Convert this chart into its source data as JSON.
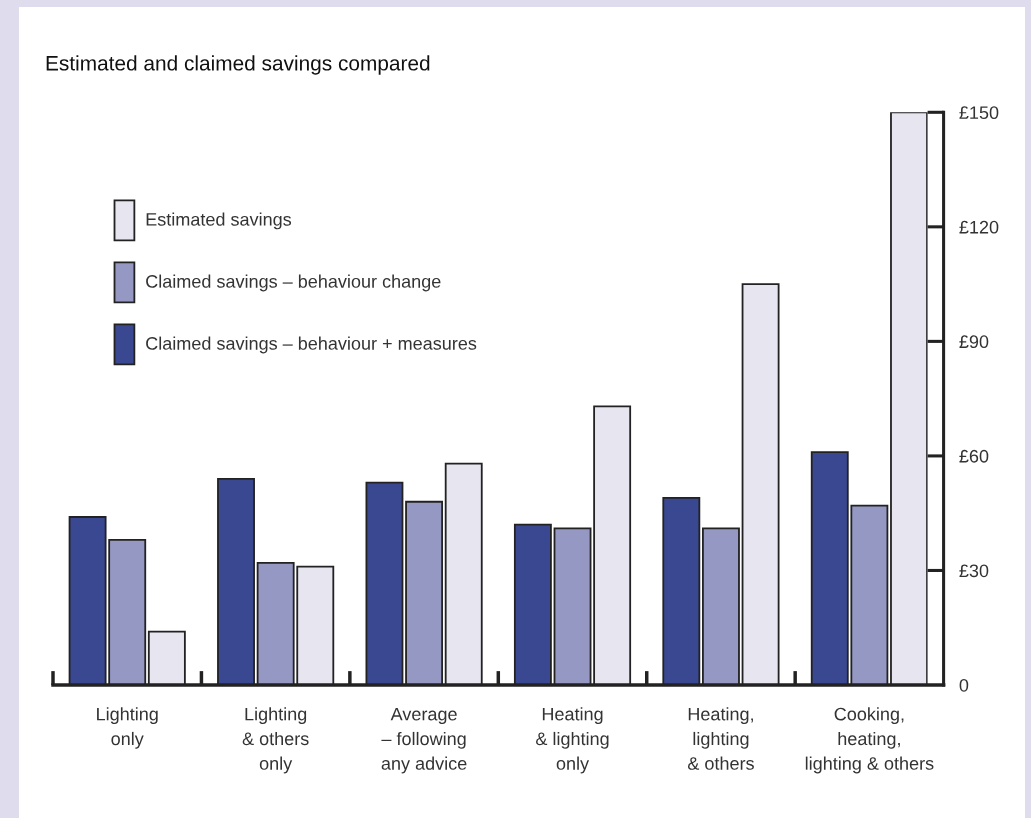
{
  "chart_data": {
    "type": "bar",
    "title": "Estimated and claimed savings compared",
    "categories": [
      "Lighting\nonly",
      "Lighting\n& others\nonly",
      "Average\n– following\nany advice",
      "Heating\n& lighting\nonly",
      "Heating,\nlighting\n& others",
      "Cooking,\nheating,\nlighting & others"
    ],
    "series": [
      {
        "name": "Claimed savings – behaviour + measures",
        "color": "#3a4892",
        "values": [
          44,
          54,
          53,
          42,
          49,
          61
        ]
      },
      {
        "name": "Claimed savings – behaviour change",
        "color": "#9598c3",
        "values": [
          38,
          32,
          48,
          41,
          41,
          47
        ]
      },
      {
        "name": "Estimated savings",
        "color": "#e6e5f0",
        "values": [
          14,
          31,
          58,
          73,
          105,
          150
        ]
      }
    ],
    "ylim": [
      0,
      150
    ],
    "yticks": [
      0,
      {
        "value": 30,
        "label": "£30"
      },
      {
        "value": 60,
        "label": "£60"
      },
      {
        "value": 90,
        "label": "£90"
      },
      {
        "value": 120,
        "label": "£120"
      },
      {
        "value": 150,
        "label": "£150"
      }
    ],
    "legend": "top left"
  }
}
